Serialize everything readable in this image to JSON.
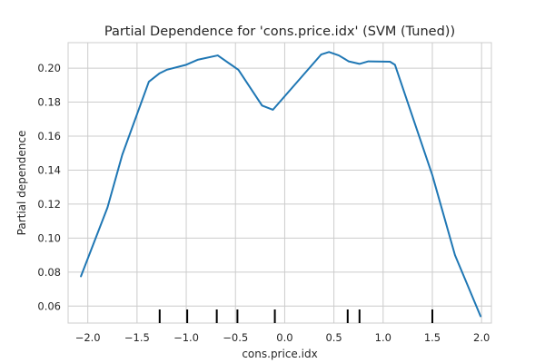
{
  "chart_data": {
    "type": "line",
    "title": "Partial Dependence for 'cons.price.idx' (SVM (Tuned))",
    "xlabel": "cons.price.idx",
    "ylabel": "Partial dependence",
    "xlim": [
      -2.2,
      2.1
    ],
    "ylim": [
      0.05,
      0.215
    ],
    "xticks": [
      -2.0,
      -1.5,
      -1.0,
      -0.5,
      0.0,
      0.5,
      1.0,
      1.5,
      2.0
    ],
    "xtick_labels": [
      "−2.0",
      "−1.5",
      "−1.0",
      "−0.5",
      "0.0",
      "0.5",
      "1.0",
      "1.5",
      "2.0"
    ],
    "yticks": [
      0.06,
      0.08,
      0.1,
      0.12,
      0.14,
      0.16,
      0.18,
      0.2
    ],
    "ytick_labels": [
      "0.06",
      "0.08",
      "0.10",
      "0.12",
      "0.14",
      "0.16",
      "0.18",
      "0.20"
    ],
    "grid": true,
    "line_color": "#1f77b4",
    "rug_color": "#000000",
    "series": [
      {
        "x": [
          -2.07,
          -1.8,
          -1.65,
          -1.38,
          -1.27,
          -1.2,
          -1.0,
          -0.88,
          -0.68,
          -0.47,
          -0.23,
          -0.12,
          0.37,
          0.45,
          0.55,
          0.65,
          0.76,
          0.85,
          1.07,
          1.12,
          1.5,
          1.73,
          1.99
        ],
        "y": [
          0.0775,
          0.118,
          0.149,
          0.192,
          0.197,
          0.199,
          0.202,
          0.205,
          0.2075,
          0.199,
          0.178,
          0.1755,
          0.208,
          0.2095,
          0.2075,
          0.204,
          0.2025,
          0.204,
          0.2038,
          0.202,
          0.137,
          0.09,
          0.054
        ]
      }
    ],
    "rug_x": [
      -1.27,
      -0.99,
      -0.69,
      -0.48,
      -0.1,
      0.64,
      0.76,
      1.5
    ]
  }
}
